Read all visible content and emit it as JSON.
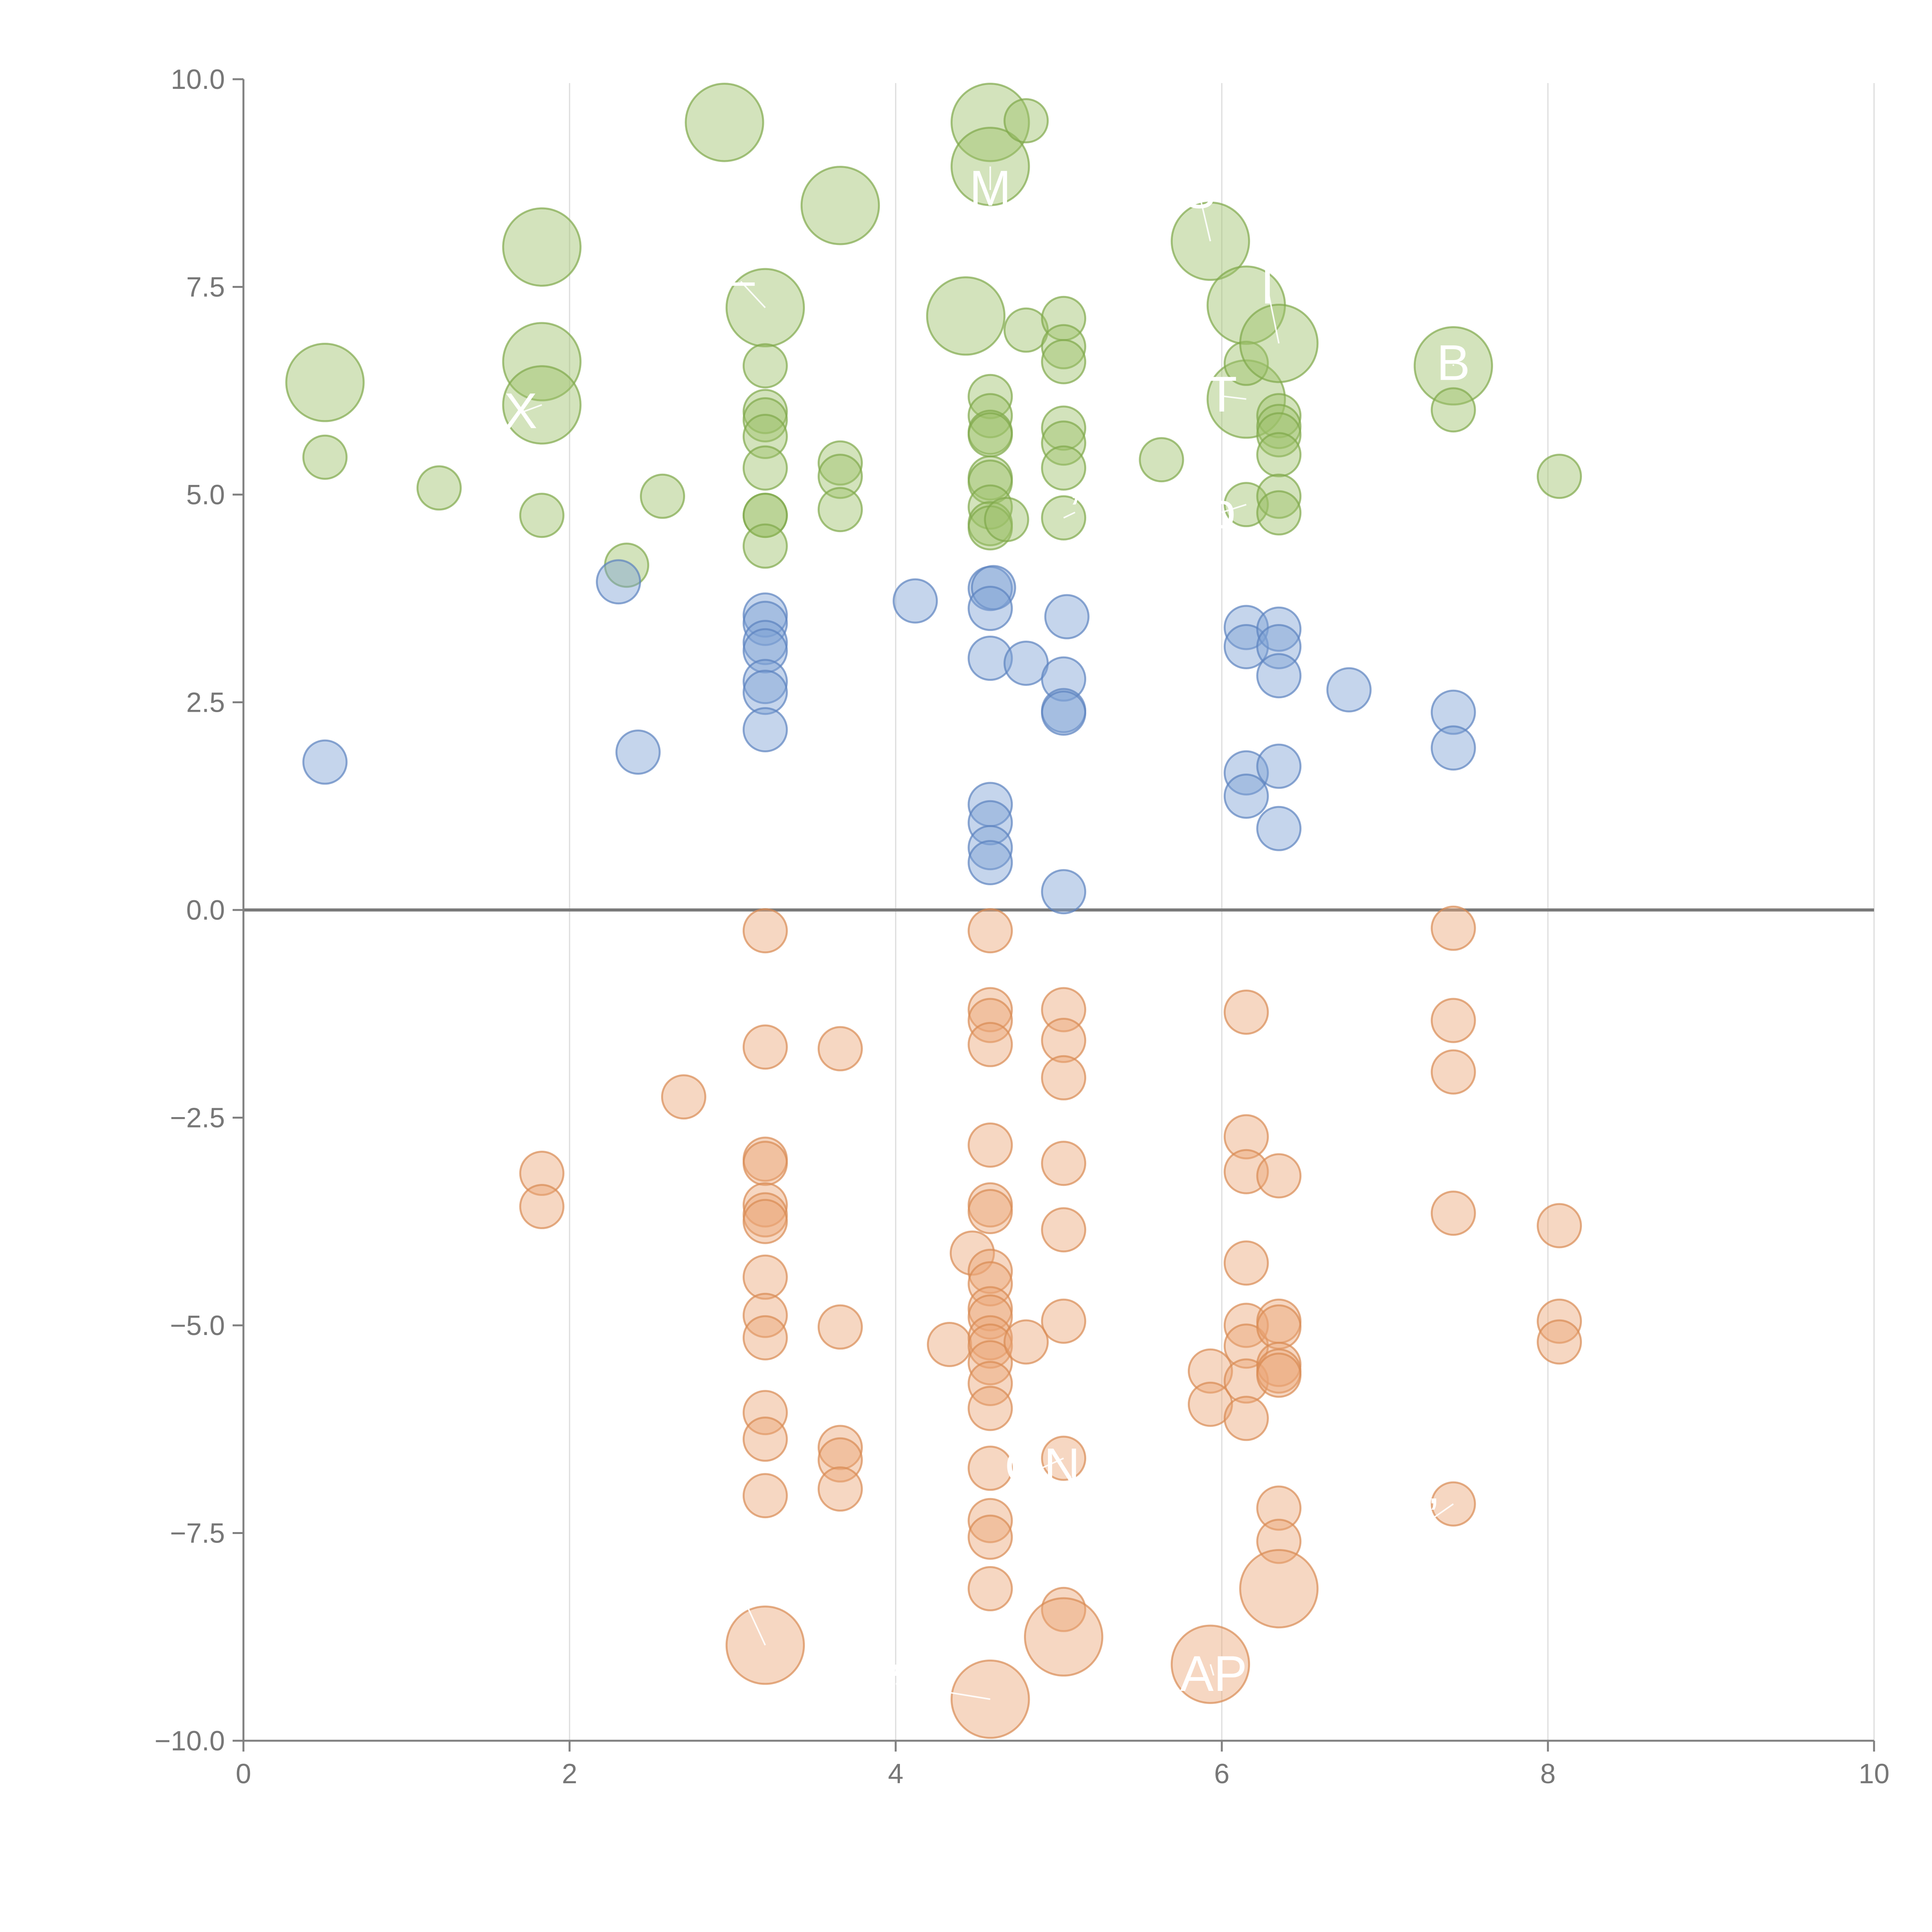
{
  "chart_data": {
    "type": "scatter",
    "subtype": "bubble",
    "title": "",
    "xlabel": "",
    "ylabel": "",
    "xlim": [
      0,
      10
    ],
    "ylim": [
      -10,
      10
    ],
    "grid": {
      "vertical": true,
      "horizontal": false
    },
    "zero_line": true,
    "xticks": [
      "0",
      "2",
      "4",
      "6",
      "8",
      "10"
    ],
    "yticks": [
      "10.0",
      "7.5",
      "5.0",
      "2.5",
      "0.0",
      "−2.5",
      "−5.0",
      "−7.5",
      "−10.0"
    ],
    "xtick_values": [
      0,
      2,
      4,
      6,
      8,
      10
    ],
    "ytick_values": [
      10,
      7.5,
      5,
      2.5,
      0,
      -2.5,
      -5,
      -7.5,
      -10
    ],
    "series": [
      {
        "name": "green",
        "color": "#9dc16a",
        "stroke": "#7fa84a",
        "points": [
          {
            "x": 0.5,
            "y": 6.35,
            "s": 3.2
          },
          {
            "x": 0.5,
            "y": 5.45,
            "s": 1
          },
          {
            "x": 1.2,
            "y": 5.08,
            "s": 1
          },
          {
            "x": 1.83,
            "y": 7.98,
            "s": 3.2
          },
          {
            "x": 1.83,
            "y": 6.6,
            "s": 3.2
          },
          {
            "x": 1.83,
            "y": 6.08,
            "s": 3.2
          },
          {
            "x": 1.83,
            "y": 4.75,
            "s": 1
          },
          {
            "x": 2.35,
            "y": 4.15,
            "s": 1
          },
          {
            "x": 2.57,
            "y": 4.98,
            "s": 1
          },
          {
            "x": 2.95,
            "y": 9.48,
            "s": 3.2
          },
          {
            "x": 3.2,
            "y": 7.25,
            "s": 3.2
          },
          {
            "x": 3.2,
            "y": 6.55,
            "s": 1
          },
          {
            "x": 3.2,
            "y": 6.0,
            "s": 1
          },
          {
            "x": 3.2,
            "y": 5.9,
            "s": 1
          },
          {
            "x": 3.2,
            "y": 5.7,
            "s": 1
          },
          {
            "x": 3.2,
            "y": 5.32,
            "s": 1
          },
          {
            "x": 3.2,
            "y": 4.75,
            "s": 1
          },
          {
            "x": 3.2,
            "y": 4.75,
            "s": 1
          },
          {
            "x": 3.2,
            "y": 4.38,
            "s": 1
          },
          {
            "x": 3.66,
            "y": 8.48,
            "s": 3.2
          },
          {
            "x": 3.66,
            "y": 5.38,
            "s": 1
          },
          {
            "x": 3.66,
            "y": 5.22,
            "s": 1
          },
          {
            "x": 3.66,
            "y": 4.82,
            "s": 1
          },
          {
            "x": 4.43,
            "y": 7.15,
            "s": 3.2
          },
          {
            "x": 4.58,
            "y": 9.48,
            "s": 3.2
          },
          {
            "x": 4.58,
            "y": 8.95,
            "s": 3.2
          },
          {
            "x": 4.58,
            "y": 6.18,
            "s": 1
          },
          {
            "x": 4.58,
            "y": 5.95,
            "s": 1
          },
          {
            "x": 4.58,
            "y": 5.75,
            "s": 1
          },
          {
            "x": 4.58,
            "y": 5.72,
            "s": 1
          },
          {
            "x": 4.58,
            "y": 5.2,
            "s": 1
          },
          {
            "x": 4.58,
            "y": 5.15,
            "s": 1
          },
          {
            "x": 4.58,
            "y": 4.85,
            "s": 1
          },
          {
            "x": 4.58,
            "y": 4.65,
            "s": 1
          },
          {
            "x": 4.58,
            "y": 4.6,
            "s": 1
          },
          {
            "x": 4.68,
            "y": 4.7,
            "s": 1
          },
          {
            "x": 4.8,
            "y": 9.5,
            "s": 1
          },
          {
            "x": 4.8,
            "y": 6.98,
            "s": 1
          },
          {
            "x": 5.03,
            "y": 7.12,
            "s": 1
          },
          {
            "x": 5.03,
            "y": 6.78,
            "s": 1
          },
          {
            "x": 5.03,
            "y": 6.6,
            "s": 1
          },
          {
            "x": 5.03,
            "y": 5.8,
            "s": 1
          },
          {
            "x": 5.03,
            "y": 5.62,
            "s": 1
          },
          {
            "x": 5.03,
            "y": 5.32,
            "s": 1
          },
          {
            "x": 5.03,
            "y": 4.72,
            "s": 1
          },
          {
            "x": 5.63,
            "y": 5.42,
            "s": 1
          },
          {
            "x": 5.93,
            "y": 8.05,
            "s": 3.2
          },
          {
            "x": 6.15,
            "y": 7.28,
            "s": 3.2
          },
          {
            "x": 6.15,
            "y": 6.15,
            "s": 3.2
          },
          {
            "x": 6.15,
            "y": 6.58,
            "s": 1
          },
          {
            "x": 6.15,
            "y": 4.88,
            "s": 1
          },
          {
            "x": 6.35,
            "y": 6.82,
            "s": 3.2
          },
          {
            "x": 6.35,
            "y": 5.95,
            "s": 1
          },
          {
            "x": 6.35,
            "y": 5.82,
            "s": 1
          },
          {
            "x": 6.35,
            "y": 5.72,
            "s": 1
          },
          {
            "x": 6.35,
            "y": 5.48,
            "s": 1
          },
          {
            "x": 6.35,
            "y": 4.98,
            "s": 1
          },
          {
            "x": 6.35,
            "y": 4.78,
            "s": 1
          },
          {
            "x": 7.42,
            "y": 6.55,
            "s": 3.2
          },
          {
            "x": 7.42,
            "y": 6.02,
            "s": 1
          },
          {
            "x": 8.07,
            "y": 5.22,
            "s": 1
          }
        ]
      },
      {
        "name": "blue",
        "color": "#7ea1d4",
        "stroke": "#5b82bf",
        "points": [
          {
            "x": 0.5,
            "y": 1.78,
            "s": 1
          },
          {
            "x": 2.3,
            "y": 3.95,
            "s": 1
          },
          {
            "x": 2.42,
            "y": 1.9,
            "s": 1
          },
          {
            "x": 3.2,
            "y": 3.55,
            "s": 1
          },
          {
            "x": 3.2,
            "y": 3.45,
            "s": 1
          },
          {
            "x": 3.2,
            "y": 3.22,
            "s": 1
          },
          {
            "x": 3.2,
            "y": 3.12,
            "s": 1
          },
          {
            "x": 3.2,
            "y": 2.75,
            "s": 1
          },
          {
            "x": 3.2,
            "y": 2.62,
            "s": 1
          },
          {
            "x": 3.2,
            "y": 2.17,
            "s": 1
          },
          {
            "x": 4.12,
            "y": 3.72,
            "s": 1
          },
          {
            "x": 4.58,
            "y": 3.87,
            "s": 1
          },
          {
            "x": 4.6,
            "y": 3.88,
            "s": 1
          },
          {
            "x": 4.58,
            "y": 3.63,
            "s": 1
          },
          {
            "x": 4.58,
            "y": 3.03,
            "s": 1
          },
          {
            "x": 4.8,
            "y": 2.97,
            "s": 1
          },
          {
            "x": 5.05,
            "y": 3.53,
            "s": 1
          },
          {
            "x": 5.03,
            "y": 2.78,
            "s": 1
          },
          {
            "x": 5.03,
            "y": 2.4,
            "s": 1
          },
          {
            "x": 5.03,
            "y": 2.37,
            "s": 1
          },
          {
            "x": 4.58,
            "y": 1.27,
            "s": 1
          },
          {
            "x": 4.58,
            "y": 1.05,
            "s": 1
          },
          {
            "x": 4.58,
            "y": 0.75,
            "s": 1
          },
          {
            "x": 4.58,
            "y": 0.57,
            "s": 1
          },
          {
            "x": 5.03,
            "y": 0.22,
            "s": 1
          },
          {
            "x": 6.15,
            "y": 3.4,
            "s": 1
          },
          {
            "x": 6.15,
            "y": 3.17,
            "s": 1
          },
          {
            "x": 6.35,
            "y": 3.38,
            "s": 1
          },
          {
            "x": 6.35,
            "y": 3.17,
            "s": 1
          },
          {
            "x": 6.35,
            "y": 2.82,
            "s": 1
          },
          {
            "x": 6.15,
            "y": 1.65,
            "s": 1
          },
          {
            "x": 6.15,
            "y": 1.37,
            "s": 1
          },
          {
            "x": 6.35,
            "y": 1.73,
            "s": 1
          },
          {
            "x": 6.35,
            "y": 0.98,
            "s": 1
          },
          {
            "x": 6.78,
            "y": 2.65,
            "s": 1
          },
          {
            "x": 7.42,
            "y": 2.38,
            "s": 1
          },
          {
            "x": 7.42,
            "y": 1.95,
            "s": 1
          }
        ]
      },
      {
        "name": "orange",
        "color": "#eba678",
        "stroke": "#d98a52",
        "points": [
          {
            "x": 1.83,
            "y": -3.17,
            "s": 1
          },
          {
            "x": 1.83,
            "y": -3.57,
            "s": 1
          },
          {
            "x": 2.7,
            "y": -2.25,
            "s": 1
          },
          {
            "x": 3.2,
            "y": -0.25,
            "s": 1
          },
          {
            "x": 3.2,
            "y": -1.65,
            "s": 1
          },
          {
            "x": 3.2,
            "y": -3.0,
            "s": 1
          },
          {
            "x": 3.2,
            "y": -3.05,
            "s": 1
          },
          {
            "x": 3.2,
            "y": -3.55,
            "s": 1
          },
          {
            "x": 3.2,
            "y": -3.67,
            "s": 1
          },
          {
            "x": 3.2,
            "y": -3.75,
            "s": 1
          },
          {
            "x": 3.2,
            "y": -4.42,
            "s": 1
          },
          {
            "x": 3.2,
            "y": -4.88,
            "s": 1
          },
          {
            "x": 3.2,
            "y": -5.15,
            "s": 1
          },
          {
            "x": 3.2,
            "y": -6.05,
            "s": 1
          },
          {
            "x": 3.2,
            "y": -6.37,
            "s": 1
          },
          {
            "x": 3.2,
            "y": -7.05,
            "s": 1
          },
          {
            "x": 3.2,
            "y": -8.85,
            "s": 3.2
          },
          {
            "x": 3.66,
            "y": -1.67,
            "s": 1
          },
          {
            "x": 3.66,
            "y": -5.02,
            "s": 1
          },
          {
            "x": 3.66,
            "y": -6.47,
            "s": 1
          },
          {
            "x": 3.66,
            "y": -6.62,
            "s": 1
          },
          {
            "x": 3.66,
            "y": -6.97,
            "s": 1
          },
          {
            "x": 4.33,
            "y": -5.23,
            "s": 1
          },
          {
            "x": 4.47,
            "y": -4.13,
            "s": 1
          },
          {
            "x": 4.58,
            "y": -0.25,
            "s": 1
          },
          {
            "x": 4.58,
            "y": -1.2,
            "s": 1
          },
          {
            "x": 4.58,
            "y": -1.33,
            "s": 1
          },
          {
            "x": 4.58,
            "y": -1.62,
            "s": 1
          },
          {
            "x": 4.58,
            "y": -2.83,
            "s": 1
          },
          {
            "x": 4.58,
            "y": -3.55,
            "s": 1
          },
          {
            "x": 4.58,
            "y": -3.63,
            "s": 1
          },
          {
            "x": 4.58,
            "y": -4.35,
            "s": 1
          },
          {
            "x": 4.58,
            "y": -4.5,
            "s": 1
          },
          {
            "x": 4.58,
            "y": -4.8,
            "s": 1
          },
          {
            "x": 4.58,
            "y": -4.9,
            "s": 1
          },
          {
            "x": 4.58,
            "y": -5.15,
            "s": 1
          },
          {
            "x": 4.58,
            "y": -5.25,
            "s": 1
          },
          {
            "x": 4.58,
            "y": -5.45,
            "s": 1
          },
          {
            "x": 4.58,
            "y": -5.7,
            "s": 1
          },
          {
            "x": 4.58,
            "y": -6.0,
            "s": 1
          },
          {
            "x": 4.58,
            "y": -6.72,
            "s": 1
          },
          {
            "x": 4.58,
            "y": -7.35,
            "s": 1
          },
          {
            "x": 4.58,
            "y": -7.55,
            "s": 1
          },
          {
            "x": 4.58,
            "y": -8.17,
            "s": 1
          },
          {
            "x": 4.58,
            "y": -9.5,
            "s": 3.2
          },
          {
            "x": 4.8,
            "y": -5.2,
            "s": 1
          },
          {
            "x": 5.03,
            "y": -1.2,
            "s": 1
          },
          {
            "x": 5.03,
            "y": -1.57,
            "s": 1
          },
          {
            "x": 5.03,
            "y": -2.02,
            "s": 1
          },
          {
            "x": 5.03,
            "y": -3.05,
            "s": 1
          },
          {
            "x": 5.03,
            "y": -3.85,
            "s": 1
          },
          {
            "x": 5.03,
            "y": -4.95,
            "s": 1
          },
          {
            "x": 5.03,
            "y": -6.6,
            "s": 1
          },
          {
            "x": 5.03,
            "y": -8.42,
            "s": 1
          },
          {
            "x": 5.03,
            "y": -8.75,
            "s": 3.2
          },
          {
            "x": 5.93,
            "y": -5.55,
            "s": 1
          },
          {
            "x": 5.93,
            "y": -5.95,
            "s": 1
          },
          {
            "x": 5.93,
            "y": -9.08,
            "s": 3.2
          },
          {
            "x": 6.15,
            "y": -1.23,
            "s": 1
          },
          {
            "x": 6.15,
            "y": -2.73,
            "s": 1
          },
          {
            "x": 6.15,
            "y": -3.15,
            "s": 1
          },
          {
            "x": 6.15,
            "y": -4.25,
            "s": 1
          },
          {
            "x": 6.15,
            "y": -5.0,
            "s": 1
          },
          {
            "x": 6.15,
            "y": -5.25,
            "s": 1
          },
          {
            "x": 6.15,
            "y": -5.67,
            "s": 1
          },
          {
            "x": 6.15,
            "y": -6.12,
            "s": 1
          },
          {
            "x": 6.35,
            "y": -3.2,
            "s": 1
          },
          {
            "x": 6.35,
            "y": -4.95,
            "s": 1
          },
          {
            "x": 6.35,
            "y": -5.02,
            "s": 1
          },
          {
            "x": 6.35,
            "y": -5.47,
            "s": 1
          },
          {
            "x": 6.35,
            "y": -5.55,
            "s": 1
          },
          {
            "x": 6.35,
            "y": -5.6,
            "s": 1
          },
          {
            "x": 6.35,
            "y": -7.2,
            "s": 1
          },
          {
            "x": 6.35,
            "y": -7.6,
            "s": 1
          },
          {
            "x": 6.35,
            "y": -8.17,
            "s": 3.2
          },
          {
            "x": 7.42,
            "y": -0.22,
            "s": 1
          },
          {
            "x": 7.42,
            "y": -1.33,
            "s": 1
          },
          {
            "x": 7.42,
            "y": -1.95,
            "s": 1
          },
          {
            "x": 7.42,
            "y": -3.65,
            "s": 1
          },
          {
            "x": 7.42,
            "y": -7.15,
            "s": 1
          },
          {
            "x": 8.07,
            "y": -3.8,
            "s": 1
          },
          {
            "x": 8.07,
            "y": -4.95,
            "s": 1
          },
          {
            "x": 8.07,
            "y": -5.2,
            "s": 1
          }
        ]
      }
    ],
    "annotations": [
      {
        "text": "M",
        "x": 4.58,
        "y": 8.48,
        "px": 4.58,
        "py": 8.95
      },
      {
        "text": "S",
        "x": 5.86,
        "y": 8.45,
        "px": 5.93,
        "py": 8.05
      },
      {
        "text": "–",
        "x": 3.05,
        "y": 7.38,
        "px": 3.2,
        "py": 7.25
      },
      {
        "text": "I",
        "x": 6.28,
        "y": 7.3,
        "px": 6.35,
        "py": 6.82
      },
      {
        "text": "B",
        "x": 7.42,
        "y": 6.38,
        "px": 7.42,
        "py": 6.55
      },
      {
        "text": "X",
        "x": 1.7,
        "y": 5.8,
        "px": 1.83,
        "py": 6.08
      },
      {
        "text": "T",
        "x": 6.0,
        "y": 6.0,
        "px": 6.15,
        "py": 6.15
      },
      {
        "text": "o",
        "x": 6.0,
        "y": 4.6,
        "px": 6.15,
        "py": 4.88
      },
      {
        "text": "’",
        "x": 5.1,
        "y": 4.6,
        "px": 5.03,
        "py": 4.72
      },
      {
        "text": "ON",
        "x": 4.9,
        "y": -6.9,
        "px": 5.03,
        "py": -6.6
      },
      {
        "text": "’",
        "x": 7.3,
        "y": -7.5,
        "px": 7.42,
        "py": -7.15
      },
      {
        "text": "’",
        "x": 3.05,
        "y": -8.4,
        "px": 3.2,
        "py": -8.85
      },
      {
        "text": "AP",
        "x": 5.95,
        "y": -9.4,
        "px": 5.93,
        "py": -9.08
      },
      {
        "text": "’",
        "x": 4.0,
        "y": -9.5,
        "px": 4.58,
        "py": -9.5
      }
    ]
  }
}
